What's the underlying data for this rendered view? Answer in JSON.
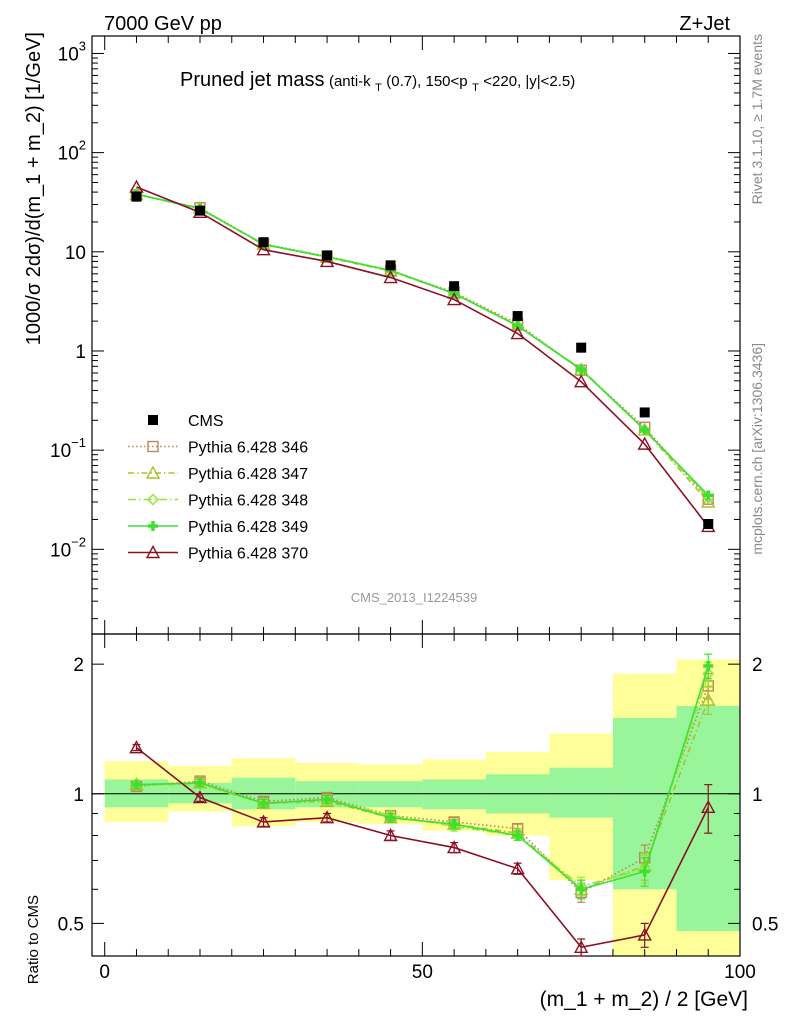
{
  "header": {
    "left": "7000 GeV pp",
    "right": "Z+Jet"
  },
  "title": {
    "main": "Pruned jet mass",
    "detail_a": "(anti-k",
    "detail_sub_T": "T",
    "detail_b": "(0.7), 150<p",
    "detail_c": "<220, |y|<2.5)"
  },
  "side_labels": {
    "rivet": "Rivet 3.1.10, ≥ 1.7M events",
    "mcplots": "mcplots.cern.ch [arXiv:1306.3436]"
  },
  "watermark": "CMS_2013_I1224539",
  "axes": {
    "ylabel_main": "1000/σ 2dσ)/d(m_1 + m_2) [1/GeV]",
    "ylabel_ratio": "Ratio to CMS",
    "xlabel": "(m_1 + m_2) / 2 [GeV]",
    "x_ticks": [
      "0",
      "50",
      "100"
    ],
    "main_ticks": [
      {
        "base": "10",
        "exp": "3",
        "v": 1000
      },
      {
        "base": "10",
        "exp": "2",
        "v": 100
      },
      {
        "base": "10",
        "exp": "",
        "v": 10
      },
      {
        "base": "1",
        "exp": "",
        "v": 1
      },
      {
        "base": "10",
        "exp": "−1",
        "v": 0.1
      },
      {
        "base": "10",
        "exp": "−2",
        "v": 0.01
      }
    ],
    "ratio_ticks": [
      "0.5",
      "1",
      "2"
    ]
  },
  "legend": [
    {
      "label": "CMS",
      "color": "#000000",
      "marker": "square-filled",
      "dash": ""
    },
    {
      "label": "Pythia 6.428 346",
      "color": "#b8895a",
      "marker": "square-open",
      "dash": "1.5,2.5"
    },
    {
      "label": "Pythia 6.428 347",
      "color": "#a8c22e",
      "marker": "triangle-open",
      "dash": "6,3,1.5,3"
    },
    {
      "label": "Pythia 6.428 348",
      "color": "#92e83a",
      "marker": "diamond-open",
      "dash": "8,3,1.5,3"
    },
    {
      "label": "Pythia 6.428 349",
      "color": "#3ee030",
      "marker": "plus",
      "dash": ""
    },
    {
      "label": "Pythia 6.428 370",
      "color": "#8b1024",
      "marker": "triangle-open",
      "dash": ""
    }
  ],
  "chart_data": {
    "type": "line",
    "x": [
      5,
      15,
      25,
      35,
      45,
      55,
      65,
      75,
      85,
      95
    ],
    "bin_edges": [
      0,
      10,
      20,
      30,
      40,
      50,
      60,
      70,
      80,
      90,
      100
    ],
    "xlim": [
      -2,
      100
    ],
    "main_ylim": [
      0.0014,
      1500
    ],
    "main_yscale": "log",
    "ratio_ylim": [
      0.42,
      2.35
    ],
    "ratio_yscale": "log",
    "data": {
      "name": "CMS",
      "values": [
        36,
        26,
        12.5,
        9.2,
        7.3,
        4.5,
        2.25,
        1.08,
        0.24,
        0.018
      ]
    },
    "band_green": [
      [
        0.93,
        1.08
      ],
      [
        0.95,
        1.06
      ],
      [
        0.92,
        1.09
      ],
      [
        0.93,
        1.07
      ],
      [
        0.93,
        1.07
      ],
      [
        0.92,
        1.08
      ],
      [
        0.9,
        1.11
      ],
      [
        0.88,
        1.15
      ],
      [
        0.6,
        1.5
      ],
      [
        0.48,
        1.6
      ]
    ],
    "band_yellow": [
      [
        0.86,
        1.19
      ],
      [
        0.91,
        1.16
      ],
      [
        0.84,
        1.21
      ],
      [
        0.86,
        1.18
      ],
      [
        0.85,
        1.17
      ],
      [
        0.82,
        1.2
      ],
      [
        0.8,
        1.25
      ],
      [
        0.63,
        1.38
      ],
      [
        0.4,
        1.9
      ],
      [
        0.4,
        2.05
      ]
    ],
    "series": [
      {
        "name": "Pythia 6.428 346",
        "values": [
          37.5,
          27.8,
          12.0,
          9.0,
          6.5,
          3.9,
          1.88,
          0.64,
          0.17,
          0.032
        ],
        "ratio": [
          1.04,
          1.07,
          0.96,
          0.98,
          0.89,
          0.86,
          0.83,
          0.59,
          0.71,
          1.78
        ],
        "ratio_err": [
          0.02,
          0.02,
          0.02,
          0.02,
          0.02,
          0.02,
          0.02,
          0.03,
          0.05,
          0.12
        ]
      },
      {
        "name": "Pythia 6.428 347",
        "values": [
          37.8,
          27.5,
          11.9,
          8.8,
          6.4,
          3.8,
          1.82,
          0.65,
          0.16,
          0.03
        ],
        "ratio": [
          1.05,
          1.06,
          0.95,
          0.96,
          0.88,
          0.85,
          0.81,
          0.6,
          0.68,
          1.65
        ],
        "ratio_err": [
          0.02,
          0.02,
          0.02,
          0.02,
          0.02,
          0.02,
          0.02,
          0.03,
          0.05,
          0.12
        ]
      },
      {
        "name": "Pythia 6.428 348",
        "values": [
          38.0,
          27.2,
          11.8,
          8.9,
          6.5,
          3.8,
          1.8,
          0.66,
          0.16,
          0.033
        ],
        "ratio": [
          1.05,
          1.05,
          0.95,
          0.97,
          0.89,
          0.84,
          0.8,
          0.61,
          0.67,
          1.9
        ],
        "ratio_err": [
          0.02,
          0.02,
          0.02,
          0.02,
          0.02,
          0.02,
          0.02,
          0.03,
          0.05,
          0.12
        ]
      },
      {
        "name": "Pythia 6.428 349",
        "values": [
          38.2,
          27.3,
          11.9,
          8.9,
          6.5,
          3.8,
          1.79,
          0.65,
          0.16,
          0.035
        ],
        "ratio": [
          1.05,
          1.06,
          0.95,
          0.97,
          0.88,
          0.85,
          0.8,
          0.6,
          0.66,
          1.98
        ],
        "ratio_err": [
          0.02,
          0.02,
          0.02,
          0.02,
          0.02,
          0.02,
          0.02,
          0.03,
          0.05,
          0.13
        ]
      },
      {
        "name": "Pythia 6.428 370",
        "values": [
          45,
          25,
          10.5,
          8.0,
          5.5,
          3.3,
          1.5,
          0.49,
          0.115,
          0.017
        ],
        "ratio": [
          1.28,
          0.98,
          0.86,
          0.88,
          0.8,
          0.75,
          0.67,
          0.44,
          0.47,
          0.93
        ],
        "ratio_err": [
          0.02,
          0.02,
          0.02,
          0.02,
          0.02,
          0.02,
          0.02,
          0.02,
          0.03,
          0.12
        ]
      }
    ]
  }
}
